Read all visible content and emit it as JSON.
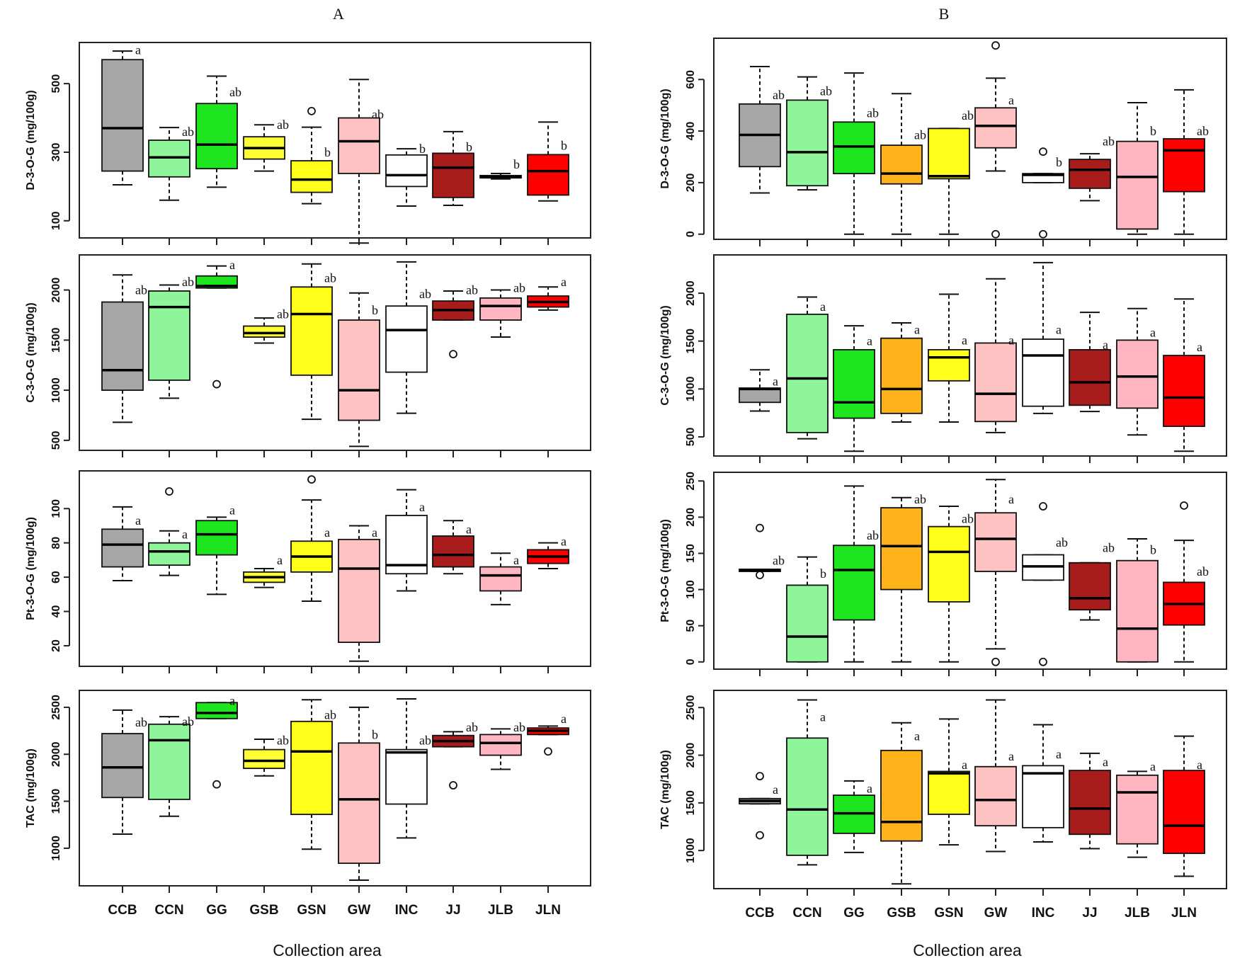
{
  "titles": {
    "left": "A",
    "right": "B"
  },
  "xlabel": "Collection area",
  "categories": [
    "CCB",
    "CCN",
    "GG",
    "GSB",
    "GSN",
    "GW",
    "INC",
    "JJ",
    "JLB",
    "JLN"
  ],
  "colors": {
    "CCB": "#a6a6a6",
    "CCN": "#8ff59a",
    "GG": "#1ee61e",
    "GSB": "#ffff33",
    "GSB_B": "#ffb31a",
    "GSN": "#ffff1a",
    "GW": "#ffc2c2",
    "INC": "#ffffff",
    "JJ": "#a81c1c",
    "JLB": "#ffb6c1",
    "JLN": "#ff0000"
  },
  "chart_data": [
    {
      "panel": "A",
      "type": "box",
      "ylabel": "D-3-O-G (mg/100g)",
      "ylim": [
        50,
        620
      ],
      "yticks": [
        100,
        300,
        500
      ],
      "boxes": [
        {
          "cat": "CCB",
          "whislo": 205,
          "q1": 245,
          "med": 370,
          "q3": 570,
          "whishi": 595,
          "sig": "a",
          "sigY": 598
        },
        {
          "cat": "CCN",
          "whislo": 160,
          "q1": 228,
          "med": 285,
          "q3": 335,
          "whishi": 372,
          "sig": "ab",
          "sigY": 360
        },
        {
          "cat": "GG",
          "whislo": 198,
          "q1": 252,
          "med": 322,
          "q3": 442,
          "whishi": 522,
          "sig": "ab",
          "sigY": 475
        },
        {
          "cat": "GSB",
          "whislo": 245,
          "q1": 280,
          "med": 312,
          "q3": 345,
          "whishi": 380,
          "sig": "ab",
          "sigY": 380
        },
        {
          "cat": "GSN",
          "whislo": 150,
          "q1": 183,
          "med": 220,
          "q3": 275,
          "whishi": 373,
          "outliers": [
            420
          ],
          "sig": "b",
          "sigY": 300
        },
        {
          "cat": "GW",
          "whislo": 35,
          "q1": 238,
          "med": 332,
          "q3": 400,
          "whishi": 512,
          "sig": "ab",
          "sigY": 410
        },
        {
          "cat": "INC",
          "whislo": 143,
          "q1": 200,
          "med": 233,
          "q3": 292,
          "whishi": 310,
          "sig": "b",
          "sigY": 310
        },
        {
          "cat": "JJ",
          "whislo": 145,
          "q1": 168,
          "med": 255,
          "q3": 297,
          "whishi": 360,
          "sig": "b",
          "sigY": 315
        },
        {
          "cat": "JLB",
          "whislo": 222,
          "q1": 225,
          "med": 228,
          "q3": 232,
          "whishi": 238,
          "sig": "b",
          "sigY": 265
        },
        {
          "cat": "JLN",
          "whislo": 158,
          "q1": 175,
          "med": 245,
          "q3": 293,
          "whishi": 388,
          "sig": "b",
          "sigY": 320
        }
      ]
    },
    {
      "panel": "A",
      "type": "box",
      "ylabel": "C-3-O-G (mg/100g)",
      "ylim": [
        400,
        2350
      ],
      "yticks": [
        500,
        1000,
        1500,
        2000
      ],
      "boxes": [
        {
          "cat": "CCB",
          "whislo": 680,
          "q1": 1000,
          "med": 1200,
          "q3": 1880,
          "whishi": 2150,
          "sig": "ab",
          "sigY": 2000
        },
        {
          "cat": "CCN",
          "whislo": 920,
          "q1": 1100,
          "med": 1830,
          "q3": 1990,
          "whishi": 2050,
          "sig": "ab",
          "sigY": 2080
        },
        {
          "cat": "GG",
          "whislo": 2020,
          "q1": 2020,
          "med": 2040,
          "q3": 2140,
          "whishi": 2240,
          "outliers": [
            1060
          ],
          "sig": "a",
          "sigY": 2250
        },
        {
          "cat": "GSB",
          "whislo": 1470,
          "q1": 1530,
          "med": 1570,
          "q3": 1640,
          "whishi": 1720,
          "sig": "ab",
          "sigY": 1760
        },
        {
          "cat": "GSN",
          "whislo": 710,
          "q1": 1150,
          "med": 1760,
          "q3": 2030,
          "whishi": 2260,
          "sig": "ab",
          "sigY": 2120
        },
        {
          "cat": "GW",
          "whislo": 440,
          "q1": 700,
          "med": 1000,
          "q3": 1700,
          "whishi": 1970,
          "sig": "b",
          "sigY": 1800
        },
        {
          "cat": "INC",
          "whislo": 770,
          "q1": 1180,
          "med": 1600,
          "q3": 1840,
          "whishi": 2280,
          "sig": "ab",
          "sigY": 1960
        },
        {
          "cat": "JJ",
          "whislo": 1700,
          "q1": 1700,
          "med": 1800,
          "q3": 1890,
          "whishi": 1990,
          "outliers": [
            1360
          ],
          "sig": "ab",
          "sigY": 2000
        },
        {
          "cat": "JLB",
          "whislo": 1530,
          "q1": 1700,
          "med": 1840,
          "q3": 1920,
          "whishi": 2000,
          "sig": "ab",
          "sigY": 2020
        },
        {
          "cat": "JLN",
          "whislo": 1800,
          "q1": 1830,
          "med": 1880,
          "q3": 1940,
          "whishi": 2030,
          "sig": "a",
          "sigY": 2080
        }
      ]
    },
    {
      "panel": "A",
      "type": "box",
      "ylabel": "Pt-3-O-G (mg/100g)",
      "ylim": [
        8,
        122
      ],
      "yticks": [
        20,
        40,
        60,
        80,
        100
      ],
      "boxes": [
        {
          "cat": "CCB",
          "whislo": 58,
          "q1": 66,
          "med": 79,
          "q3": 88,
          "whishi": 101,
          "sig": "a",
          "sigY": 93
        },
        {
          "cat": "CCN",
          "whislo": 61,
          "q1": 67,
          "med": 75,
          "q3": 80,
          "whishi": 87,
          "outliers": [
            110
          ],
          "sig": "a",
          "sigY": 85
        },
        {
          "cat": "GG",
          "whislo": 50,
          "q1": 73,
          "med": 85,
          "q3": 93,
          "whishi": 95,
          "sig": "a",
          "sigY": 99
        },
        {
          "cat": "GSB",
          "whislo": 54,
          "q1": 57,
          "med": 60,
          "q3": 63,
          "whishi": 65,
          "sig": "a",
          "sigY": 70
        },
        {
          "cat": "GSN",
          "whislo": 46,
          "q1": 63,
          "med": 72,
          "q3": 81,
          "whishi": 105,
          "outliers": [
            117
          ],
          "sig": "a",
          "sigY": 86
        },
        {
          "cat": "GW",
          "whislo": 11,
          "q1": 22,
          "med": 65,
          "q3": 82,
          "whishi": 90,
          "sig": "a",
          "sigY": 86
        },
        {
          "cat": "INC",
          "whislo": 52,
          "q1": 62,
          "med": 67,
          "q3": 96,
          "whishi": 111,
          "sig": "a",
          "sigY": 101
        },
        {
          "cat": "JJ",
          "whislo": 62,
          "q1": 66,
          "med": 73,
          "q3": 84,
          "whishi": 93,
          "sig": "a",
          "sigY": 88
        },
        {
          "cat": "JLB",
          "whislo": 44,
          "q1": 52,
          "med": 61,
          "q3": 66,
          "whishi": 74,
          "sig": "a",
          "sigY": 70
        },
        {
          "cat": "JLN",
          "whislo": 65,
          "q1": 68,
          "med": 72,
          "q3": 76,
          "whishi": 80,
          "sig": "a",
          "sigY": 81
        }
      ]
    },
    {
      "panel": "A",
      "type": "box",
      "ylabel": "TAC (mg/100g)",
      "ylim": [
        600,
        2680
      ],
      "yticks": [
        1000,
        1500,
        2000,
        2500
      ],
      "boxes": [
        {
          "cat": "CCB",
          "whislo": 1150,
          "q1": 1540,
          "med": 1860,
          "q3": 2220,
          "whishi": 2470,
          "sig": "ab",
          "sigY": 2340
        },
        {
          "cat": "CCN",
          "whislo": 1340,
          "q1": 1520,
          "med": 2150,
          "q3": 2320,
          "whishi": 2400,
          "sig": "ab",
          "sigY": 2350
        },
        {
          "cat": "GG",
          "whislo": 2380,
          "q1": 2380,
          "med": 2440,
          "q3": 2550,
          "whishi": 2550,
          "outliers": [
            1680
          ],
          "sig": "a",
          "sigY": 2570
        },
        {
          "cat": "GSB",
          "whislo": 1770,
          "q1": 1850,
          "med": 1930,
          "q3": 2050,
          "whishi": 2160,
          "sig": "ab",
          "sigY": 2150
        },
        {
          "cat": "GSN",
          "whislo": 990,
          "q1": 1360,
          "med": 2030,
          "q3": 2350,
          "whishi": 2580,
          "sig": "ab",
          "sigY": 2420
        },
        {
          "cat": "GW",
          "whislo": 660,
          "q1": 840,
          "med": 1520,
          "q3": 2120,
          "whishi": 2500,
          "sig": "b",
          "sigY": 2210
        },
        {
          "cat": "INC",
          "whislo": 1110,
          "q1": 1470,
          "med": 2020,
          "q3": 2050,
          "whishi": 2590,
          "sig": "ab",
          "sigY": 2150
        },
        {
          "cat": "JJ",
          "whislo": 2080,
          "q1": 2080,
          "med": 2140,
          "q3": 2200,
          "whishi": 2240,
          "outliers": [
            1670
          ],
          "sig": "ab",
          "sigY": 2290
        },
        {
          "cat": "JLB",
          "whislo": 1840,
          "q1": 1990,
          "med": 2120,
          "q3": 2210,
          "whishi": 2270,
          "sig": "ab",
          "sigY": 2290
        },
        {
          "cat": "JLN",
          "whislo": 2210,
          "q1": 2210,
          "med": 2250,
          "q3": 2280,
          "whishi": 2300,
          "outliers": [
            2030
          ],
          "sig": "a",
          "sigY": 2380
        }
      ]
    },
    {
      "panel": "B",
      "type": "box",
      "ylabel": "D-3-O-G (mg/100g)",
      "ylim": [
        -20,
        760
      ],
      "yticks": [
        0,
        200,
        400,
        600
      ],
      "boxes": [
        {
          "cat": "CCB",
          "whislo": 160,
          "q1": 262,
          "med": 385,
          "q3": 505,
          "whishi": 650,
          "sig": "ab",
          "sigY": 540
        },
        {
          "cat": "CCN",
          "whislo": 172,
          "q1": 188,
          "med": 318,
          "q3": 520,
          "whishi": 610,
          "sig": "ab",
          "sigY": 555
        },
        {
          "cat": "GG",
          "whislo": 0,
          "q1": 235,
          "med": 340,
          "q3": 435,
          "whishi": 625,
          "sig": "ab",
          "sigY": 470
        },
        {
          "cat": "GSB",
          "whislo": 0,
          "q1": 195,
          "med": 235,
          "q3": 345,
          "whishi": 545,
          "sig": "ab",
          "sigY": 385
        },
        {
          "cat": "GSN",
          "whislo": 0,
          "q1": 215,
          "med": 225,
          "q3": 410,
          "whishi": 410,
          "sig": "ab",
          "sigY": 460
        },
        {
          "cat": "GW",
          "whislo": 245,
          "q1": 335,
          "med": 420,
          "q3": 490,
          "whishi": 605,
          "outliers": [
            732,
            0
          ],
          "sig": "a",
          "sigY": 520
        },
        {
          "cat": "INC",
          "whislo": 200,
          "q1": 200,
          "med": 230,
          "q3": 235,
          "whishi": 235,
          "outliers": [
            320,
            0
          ],
          "sig": "b",
          "sigY": 280
        },
        {
          "cat": "JJ",
          "whislo": 130,
          "q1": 178,
          "med": 250,
          "q3": 290,
          "whishi": 312,
          "sig": "ab",
          "sigY": 360
        },
        {
          "cat": "JLB",
          "whislo": 0,
          "q1": 20,
          "med": 222,
          "q3": 360,
          "whishi": 510,
          "sig": "b",
          "sigY": 400
        },
        {
          "cat": "JLN",
          "whislo": 0,
          "q1": 165,
          "med": 325,
          "q3": 370,
          "whishi": 560,
          "sig": "ab",
          "sigY": 400
        }
      ]
    },
    {
      "panel": "B",
      "type": "box",
      "ylabel": "C-3-O-G (mg/100g)",
      "ylim": [
        300,
        2400
      ],
      "yticks": [
        500,
        1000,
        1500,
        2000
      ],
      "boxes": [
        {
          "cat": "CCB",
          "whislo": 770,
          "q1": 860,
          "med": 1000,
          "q3": 1010,
          "whishi": 1200,
          "sig": "a",
          "sigY": 1080
        },
        {
          "cat": "CCN",
          "whislo": 480,
          "q1": 545,
          "med": 1110,
          "q3": 1780,
          "whishi": 1960,
          "sig": "a",
          "sigY": 1860
        },
        {
          "cat": "GG",
          "whislo": 350,
          "q1": 695,
          "med": 860,
          "q3": 1410,
          "whishi": 1660,
          "sig": "a",
          "sigY": 1500
        },
        {
          "cat": "GSB",
          "whislo": 655,
          "q1": 745,
          "med": 1000,
          "q3": 1530,
          "whishi": 1690,
          "sig": "a",
          "sigY": 1620
        },
        {
          "cat": "GSN",
          "whislo": 655,
          "q1": 1085,
          "med": 1330,
          "q3": 1410,
          "whishi": 1990,
          "sig": "a",
          "sigY": 1510
        },
        {
          "cat": "GW",
          "whislo": 545,
          "q1": 660,
          "med": 950,
          "q3": 1480,
          "whishi": 2150,
          "sig": "a",
          "sigY": 1510
        },
        {
          "cat": "INC",
          "whislo": 745,
          "q1": 820,
          "med": 1350,
          "q3": 1520,
          "whishi": 2320,
          "sig": "a",
          "sigY": 1620
        },
        {
          "cat": "JJ",
          "whislo": 765,
          "q1": 830,
          "med": 1070,
          "q3": 1410,
          "whishi": 1800,
          "sig": "a",
          "sigY": 1460
        },
        {
          "cat": "JLB",
          "whislo": 520,
          "q1": 800,
          "med": 1130,
          "q3": 1510,
          "whishi": 1840,
          "sig": "a",
          "sigY": 1590
        },
        {
          "cat": "JLN",
          "whislo": 350,
          "q1": 610,
          "med": 910,
          "q3": 1350,
          "whishi": 1940,
          "sig": "a",
          "sigY": 1440
        }
      ]
    },
    {
      "panel": "B",
      "type": "box",
      "ylabel": "Pt-3-O-G (mg/100g)",
      "ylim": [
        -10,
        262
      ],
      "yticks": [
        0,
        50,
        100,
        150,
        200,
        250
      ],
      "boxes": [
        {
          "cat": "CCB",
          "whislo": 125,
          "q1": 125,
          "med": 127,
          "q3": 128,
          "whishi": 128,
          "outliers": [
            185,
            120
          ],
          "sig": "ab",
          "sigY": 140
        },
        {
          "cat": "CCN",
          "whislo": 0,
          "q1": 0,
          "med": 35,
          "q3": 106,
          "whishi": 145,
          "sig": "b",
          "sigY": 122
        },
        {
          "cat": "GG",
          "whislo": 0,
          "q1": 58,
          "med": 127,
          "q3": 161,
          "whishi": 243,
          "sig": "ab",
          "sigY": 175
        },
        {
          "cat": "GSB",
          "whislo": 0,
          "q1": 100,
          "med": 160,
          "q3": 213,
          "whishi": 227,
          "sig": "ab",
          "sigY": 225
        },
        {
          "cat": "GSN",
          "whislo": 0,
          "q1": 83,
          "med": 152,
          "q3": 187,
          "whishi": 215,
          "sig": "ab",
          "sigY": 198
        },
        {
          "cat": "GW",
          "whislo": 18,
          "q1": 125,
          "med": 170,
          "q3": 206,
          "whishi": 252,
          "outliers": [
            0
          ],
          "sig": "a",
          "sigY": 225
        },
        {
          "cat": "INC",
          "whislo": 113,
          "q1": 113,
          "med": 132,
          "q3": 148,
          "whishi": 148,
          "outliers": [
            215,
            0
          ],
          "sig": "ab",
          "sigY": 165
        },
        {
          "cat": "JJ",
          "whislo": 58,
          "q1": 72,
          "med": 88,
          "q3": 137,
          "whishi": 137,
          "sig": "ab",
          "sigY": 158
        },
        {
          "cat": "JLB",
          "whislo": 0,
          "q1": 0,
          "med": 46,
          "q3": 140,
          "whishi": 170,
          "sig": "b",
          "sigY": 155
        },
        {
          "cat": "JLN",
          "whislo": 0,
          "q1": 51,
          "med": 80,
          "q3": 110,
          "whishi": 168,
          "outliers": [
            216
          ],
          "sig": "ab",
          "sigY": 125
        }
      ]
    },
    {
      "panel": "B",
      "type": "box",
      "ylabel": "TAC (mg/100g)",
      "ylim": [
        600,
        2680
      ],
      "yticks": [
        1000,
        1500,
        2000,
        2500
      ],
      "boxes": [
        {
          "cat": "CCB",
          "whislo": 1490,
          "q1": 1490,
          "med": 1520,
          "q3": 1545,
          "whishi": 1545,
          "outliers": [
            1780,
            1160
          ],
          "sig": "a",
          "sigY": 1640
        },
        {
          "cat": "CCN",
          "whislo": 850,
          "q1": 950,
          "med": 1430,
          "q3": 2180,
          "whishi": 2580,
          "sig": "a",
          "sigY": 2400
        },
        {
          "cat": "GG",
          "whislo": 980,
          "q1": 1180,
          "med": 1390,
          "q3": 1580,
          "whishi": 1730,
          "sig": "a",
          "sigY": 1650
        },
        {
          "cat": "GSB",
          "whislo": 650,
          "q1": 1100,
          "med": 1300,
          "q3": 2050,
          "whishi": 2340,
          "sig": "a",
          "sigY": 2200
        },
        {
          "cat": "GSN",
          "whislo": 1060,
          "q1": 1380,
          "med": 1810,
          "q3": 1830,
          "whishi": 2380,
          "sig": "a",
          "sigY": 1900
        },
        {
          "cat": "GW",
          "whislo": 990,
          "q1": 1260,
          "med": 1530,
          "q3": 1880,
          "whishi": 2580,
          "sig": "a",
          "sigY": 1990
        },
        {
          "cat": "INC",
          "whislo": 1090,
          "q1": 1240,
          "med": 1810,
          "q3": 1890,
          "whishi": 2320,
          "sig": "a",
          "sigY": 2010
        },
        {
          "cat": "JJ",
          "whislo": 1020,
          "q1": 1170,
          "med": 1440,
          "q3": 1840,
          "whishi": 2020,
          "sig": "a",
          "sigY": 1930
        },
        {
          "cat": "JLB",
          "whislo": 930,
          "q1": 1070,
          "med": 1610,
          "q3": 1790,
          "whishi": 1830,
          "sig": "a",
          "sigY": 1880
        },
        {
          "cat": "JLN",
          "whislo": 730,
          "q1": 970,
          "med": 1260,
          "q3": 1840,
          "whishi": 2200,
          "sig": "a",
          "sigY": 1900
        }
      ]
    }
  ]
}
